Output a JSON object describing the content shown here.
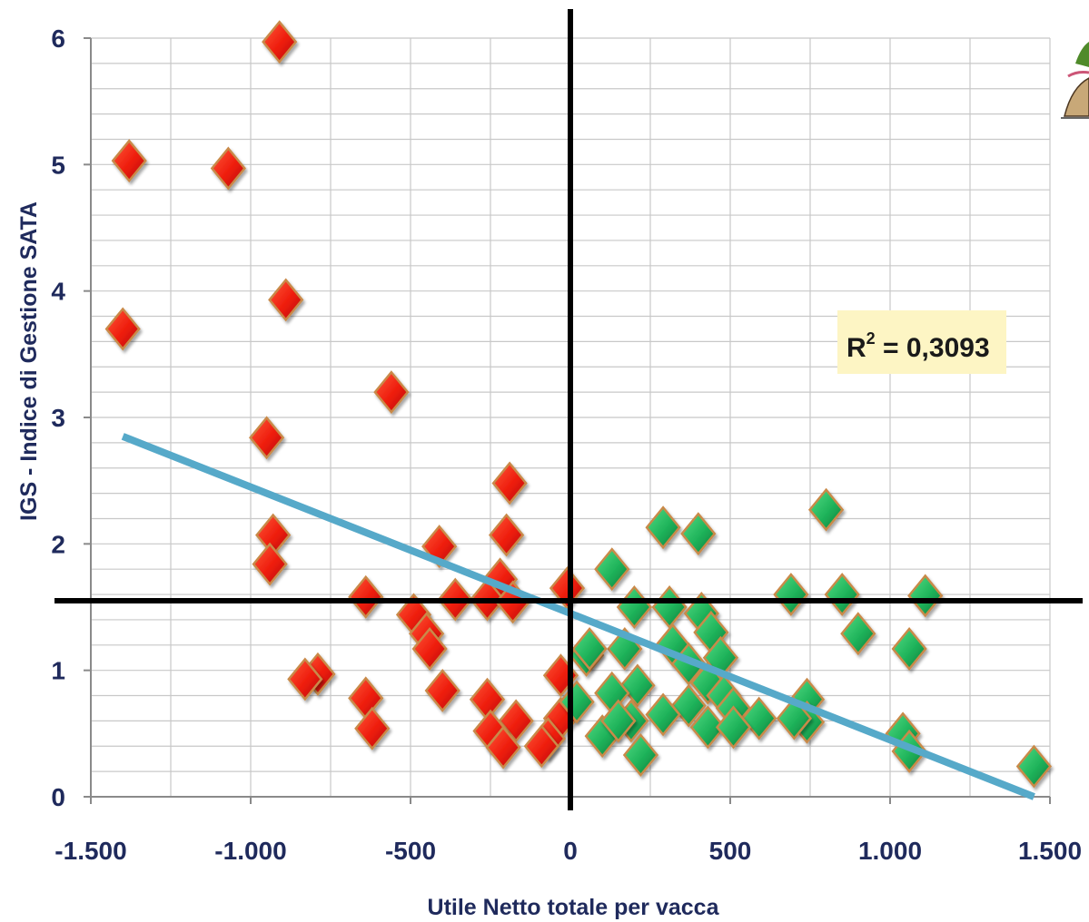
{
  "chart_data": {
    "type": "scatter",
    "title": "",
    "xlabel": "Utile Netto totale per vacca",
    "ylabel": "IGS - Indice di Gestione SATA",
    "xlim": [
      -1500,
      1500
    ],
    "ylim": [
      0,
      6
    ],
    "x_ticks": [
      -1500,
      -1000,
      -500,
      0,
      500,
      1000,
      1500
    ],
    "x_tick_labels": [
      "-1.500",
      "-1.000",
      "-500",
      "0",
      "500",
      "1.000",
      "1.500"
    ],
    "y_ticks": [
      0,
      1,
      2,
      3,
      4,
      5,
      6
    ],
    "y_tick_labels": [
      "0",
      "1",
      "2",
      "3",
      "4",
      "5",
      "6"
    ],
    "grid": true,
    "reference_lines": {
      "x": 0,
      "y": 1.55
    },
    "annotation": {
      "text_base": "R",
      "text_sup": "2",
      "text_rest": " = 0,3093",
      "fill": "#fdf5c4"
    },
    "trendline": {
      "x": [
        -1400,
        1450
      ],
      "y": [
        2.85,
        0.0
      ],
      "color": "#56a9c9"
    },
    "series": [
      {
        "color": "#ee1c0c",
        "points": [
          [
            -910,
            5.97
          ],
          [
            -1380,
            5.03
          ],
          [
            -1070,
            4.97
          ],
          [
            -890,
            3.93
          ],
          [
            -1400,
            3.7
          ],
          [
            -560,
            3.2
          ],
          [
            -950,
            2.84
          ],
          [
            -190,
            2.48
          ],
          [
            -200,
            2.07
          ],
          [
            -930,
            2.07
          ],
          [
            -410,
            1.98
          ],
          [
            -940,
            1.84
          ],
          [
            -220,
            1.72
          ],
          [
            -10,
            1.65
          ],
          [
            -640,
            1.58
          ],
          [
            -360,
            1.56
          ],
          [
            -260,
            1.56
          ],
          [
            -180,
            1.54
          ],
          [
            -490,
            1.44
          ],
          [
            -450,
            1.29
          ],
          [
            -440,
            1.17
          ],
          [
            -790,
            0.97
          ],
          [
            -830,
            0.93
          ],
          [
            -30,
            0.96
          ],
          [
            -400,
            0.84
          ],
          [
            -640,
            0.78
          ],
          [
            -260,
            0.77
          ],
          [
            -170,
            0.6
          ],
          [
            -30,
            0.62
          ],
          [
            -620,
            0.54
          ],
          [
            -250,
            0.52
          ],
          [
            -70,
            0.46
          ],
          [
            -90,
            0.4
          ],
          [
            -210,
            0.39
          ]
        ]
      },
      {
        "color": "#1fb35a",
        "points": [
          [
            800,
            2.27
          ],
          [
            290,
            2.13
          ],
          [
            400,
            2.08
          ],
          [
            130,
            1.8
          ],
          [
            1110,
            1.59
          ],
          [
            690,
            1.6
          ],
          [
            850,
            1.6
          ],
          [
            200,
            1.5
          ],
          [
            310,
            1.5
          ],
          [
            410,
            1.45
          ],
          [
            440,
            1.3
          ],
          [
            900,
            1.29
          ],
          [
            320,
            1.2
          ],
          [
            170,
            1.17
          ],
          [
            1060,
            1.17
          ],
          [
            50,
            1.12
          ],
          [
            470,
            1.1
          ],
          [
            370,
            1.05
          ],
          [
            430,
            0.9
          ],
          [
            210,
            0.88
          ],
          [
            130,
            0.82
          ],
          [
            480,
            0.8
          ],
          [
            740,
            0.77
          ],
          [
            20,
            0.75
          ],
          [
            370,
            0.72
          ],
          [
            510,
            0.7
          ],
          [
            290,
            0.65
          ],
          [
            590,
            0.62
          ],
          [
            190,
            0.6
          ],
          [
            740,
            0.59
          ],
          [
            1040,
            0.5
          ],
          [
            430,
            0.55
          ],
          [
            510,
            0.55
          ],
          [
            100,
            0.48
          ],
          [
            1060,
            0.36
          ],
          [
            220,
            0.33
          ],
          [
            1450,
            0.24
          ],
          [
            700,
            0.62
          ],
          [
            60,
            1.17
          ],
          [
            150,
            0.6
          ]
        ]
      }
    ]
  }
}
